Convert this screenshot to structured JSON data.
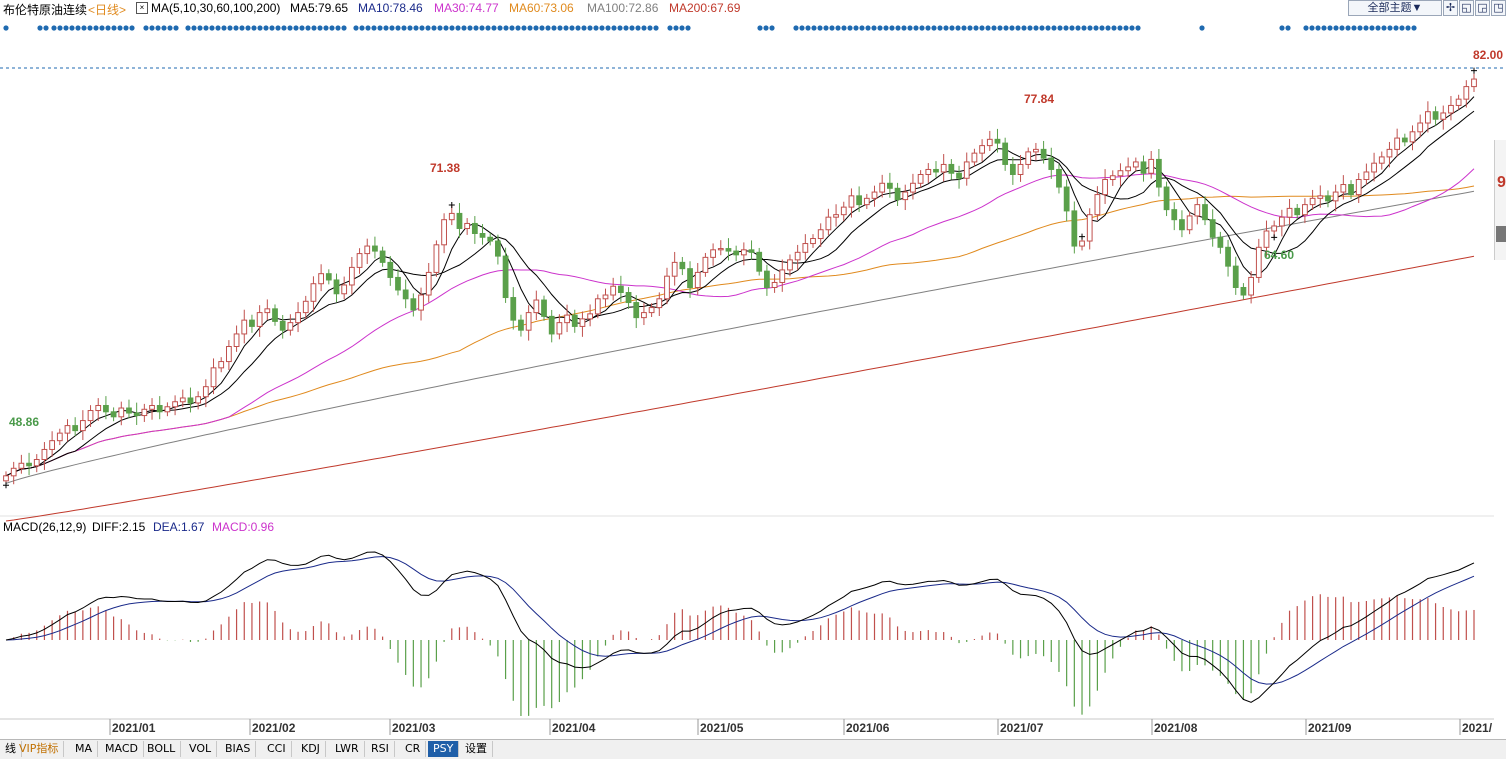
{
  "header": {
    "instrument": "布伦特原油连续",
    "period": "<日线>",
    "ma_label": "MA(5,10,30,60,100,200)",
    "ma5": "MA5:79.65",
    "ma10": "MA10:78.46",
    "ma30": "MA30:74.77",
    "ma60": "MA60:73.06",
    "ma100": "MA100:72.86",
    "ma200": "MA200:67.69",
    "theme_button": "全部主题▼"
  },
  "colors": {
    "up": "#c0504d",
    "down": "#5aa04a",
    "ma5": "#000000",
    "ma10": "#000000",
    "ma30": "#cc33cc",
    "ma60": "#e08a1e",
    "ma100": "#808080",
    "ma200": "#c0392b",
    "diff": "#000000",
    "dea": "#1a2a8a",
    "macd_pos": "#c0504d",
    "macd_neg": "#5aa04a",
    "label_red": "#c0392b",
    "label_green": "#4a9a4a",
    "dotline": "#1f6ab0"
  },
  "macd": {
    "label": "MACD(26,12,9)",
    "diff": "DIFF:2.15",
    "dea": "DEA:1.67",
    "macd": "MACD:0.96"
  },
  "tabs": [
    "线",
    "VIP指标",
    "MA",
    "MACD",
    "BOLL",
    "VOL",
    "BIAS",
    "CCI",
    "KDJ",
    "LWR",
    "RSI",
    "CR",
    "PSY",
    "设置"
  ],
  "active_tab": "PSY",
  "chart_data": {
    "type": "line",
    "title": "",
    "price_axis_range": [
      47,
      83
    ],
    "months": [
      "2021/01",
      "2021/02",
      "2021/03",
      "2021/04",
      "2021/05",
      "2021/06",
      "2021/07",
      "2021/08",
      "2021/09",
      "2021/"
    ],
    "annotations": [
      {
        "text": "48.86",
        "kind": "low"
      },
      {
        "text": "71.38",
        "kind": "high"
      },
      {
        "text": "77.84",
        "kind": "high"
      },
      {
        "text": "64.60",
        "kind": "low"
      },
      {
        "text": "82.00",
        "kind": "high"
      }
    ],
    "close": [
      50.2,
      50.8,
      51.2,
      51.0,
      51.5,
      52.3,
      53.0,
      53.6,
      54.2,
      53.8,
      54.6,
      55.4,
      55.8,
      55.3,
      54.9,
      55.6,
      55.2,
      55.0,
      55.5,
      55.8,
      55.3,
      55.7,
      56.1,
      56.4,
      56.0,
      56.5,
      57.3,
      58.8,
      59.3,
      60.5,
      61.5,
      62.6,
      62.1,
      63.2,
      63.5,
      62.5,
      61.8,
      62.4,
      63.2,
      64.1,
      65.5,
      66.3,
      65.8,
      64.7,
      65.4,
      66.8,
      67.9,
      68.5,
      68.1,
      67.2,
      66.0,
      65.0,
      64.3,
      63.4,
      64.6,
      66.4,
      68.6,
      70.6,
      71.1,
      69.9,
      70.3,
      69.5,
      69.2,
      68.9,
      67.7,
      64.4,
      62.6,
      61.8,
      63.2,
      64.2,
      62.9,
      61.5,
      62.4,
      63.0,
      62.1,
      62.7,
      63.1,
      64.3,
      64.6,
      65.3,
      64.8,
      64.0,
      62.8,
      63.2,
      63.6,
      64.3,
      66.1,
      67.2,
      66.7,
      65.2,
      66.4,
      67.6,
      68.2,
      68.3,
      68.1,
      67.8,
      68.2,
      68.0,
      66.5,
      65.2,
      65.6,
      66.6,
      67.4,
      68.0,
      68.7,
      69.1,
      69.8,
      70.8,
      71.0,
      71.6,
      72.5,
      71.8,
      72.3,
      72.8,
      73.5,
      73.1,
      72.2,
      72.8,
      73.5,
      74.2,
      74.6,
      74.4,
      75.0,
      74.3,
      73.9,
      75.2,
      75.9,
      76.5,
      77.0,
      76.7,
      75.0,
      74.2,
      75.0,
      76.0,
      76.2,
      75.5,
      74.6,
      73.2,
      71.3,
      68.5,
      68.9,
      71.0,
      72.6,
      73.8,
      74.1,
      74.5,
      74.8,
      75.2,
      74.3,
      75.4,
      73.2,
      71.4,
      70.6,
      69.8,
      70.9,
      71.8,
      70.6,
      69.2,
      68.4,
      66.9,
      65.2,
      64.6,
      66.0,
      68.4,
      69.7,
      70.1,
      70.8,
      71.5,
      71.0,
      71.8,
      72.3,
      72.5,
      72.1,
      72.8,
      73.4,
      72.6,
      73.8,
      74.4,
      75.1,
      75.6,
      76.2,
      77.1,
      76.8,
      77.6,
      78.3,
      79.2,
      78.6,
      79.1,
      79.7,
      80.2,
      81.2,
      81.8
    ]
  }
}
